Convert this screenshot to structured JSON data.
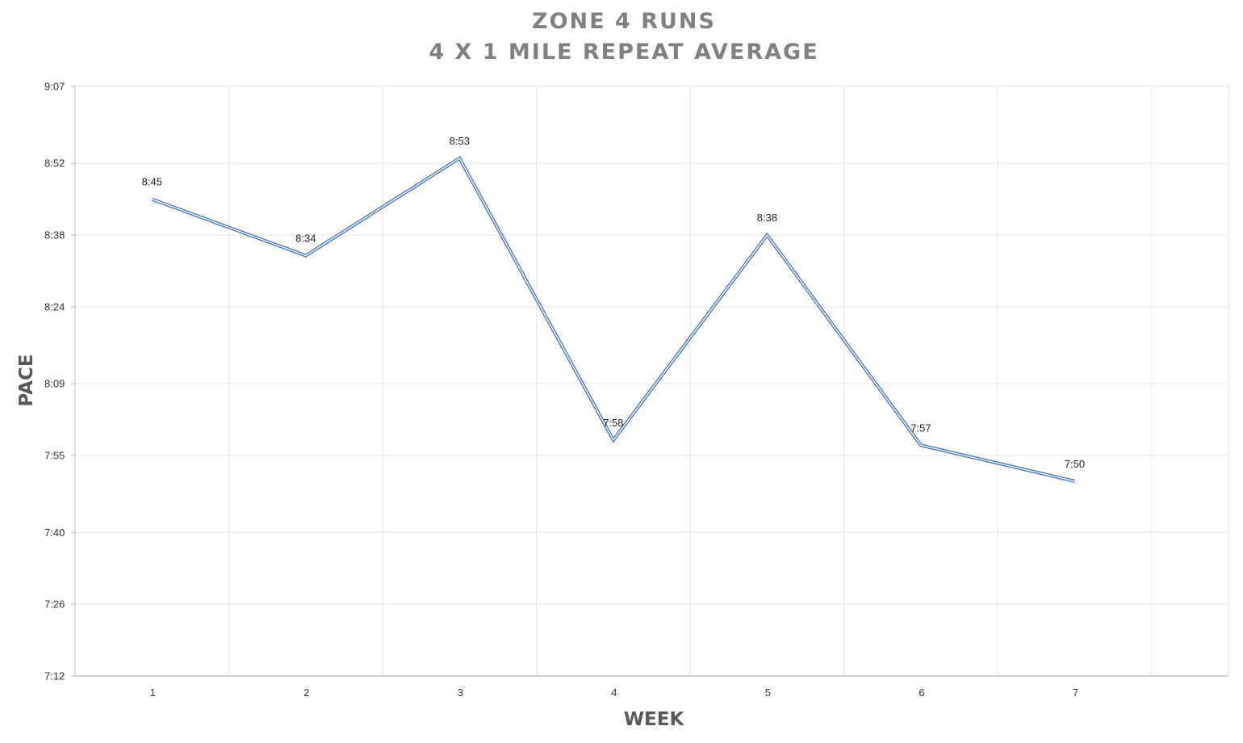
{
  "chart_data": {
    "type": "line",
    "title": "ZONE 4 RUNS",
    "subtitle": "4 X 1 MILE REPEAT AVERAGE",
    "xlabel": "WEEK",
    "ylabel": "PACE",
    "categories": [
      "1",
      "2",
      "3",
      "4",
      "5",
      "6",
      "7"
    ],
    "series": [
      {
        "values": [
          "8:45",
          "8:34",
          "8:53",
          "7:58",
          "8:38",
          "7:57",
          "7:50"
        ],
        "color": "#4472C4"
      }
    ],
    "y_ticks": [
      "7:12",
      "7:26",
      "7:40",
      "7:55",
      "8:09",
      "8:24",
      "8:38",
      "8:52",
      "9:07"
    ],
    "ylim": [
      "7:12",
      "9:07"
    ],
    "grid": true,
    "data_labels": true
  }
}
